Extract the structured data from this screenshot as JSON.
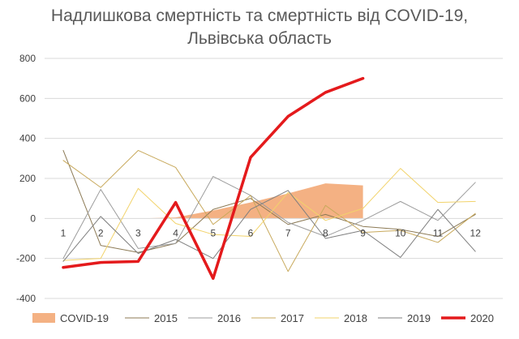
{
  "chart_data": {
    "type": "line",
    "title_line1": "Надлишкова смертність та смертність від COVID-19,",
    "title_line2": "Львівська область",
    "x": [
      1,
      2,
      3,
      4,
      5,
      6,
      7,
      8,
      9,
      10,
      11,
      12
    ],
    "x_tick_labels": [
      "1",
      "2",
      "3",
      "4",
      "5",
      "6",
      "7",
      "8",
      "9",
      "10",
      "11",
      "12"
    ],
    "ylim": [
      -400,
      800
    ],
    "y_ticks": [
      -400,
      -200,
      0,
      200,
      400,
      600,
      800
    ],
    "grid": true,
    "legend_position": "bottom",
    "area": {
      "name": "COVID-19",
      "color": "#f4b183",
      "x": [
        3,
        4,
        5,
        6,
        7,
        8,
        9
      ],
      "values": [
        0,
        5,
        40,
        80,
        125,
        175,
        165
      ]
    },
    "series": [
      {
        "name": "2015",
        "color": "#8c7a55",
        "width": 1,
        "values": [
          340,
          -135,
          -170,
          -125,
          45,
          100,
          -30,
          20,
          -40,
          -55,
          -90,
          20
        ]
      },
      {
        "name": "2016",
        "color": "#9c9c9c",
        "width": 1,
        "values": [
          -200,
          145,
          -150,
          -125,
          210,
          115,
          -20,
          -90,
          -10,
          85,
          -10,
          180
        ]
      },
      {
        "name": "2017",
        "color": "#c8a95c",
        "width": 1,
        "values": [
          290,
          155,
          340,
          255,
          -30,
          115,
          -265,
          65,
          -70,
          -60,
          -120,
          25
        ]
      },
      {
        "name": "2018",
        "color": "#f2d36b",
        "width": 1,
        "values": [
          -210,
          -200,
          150,
          -25,
          -80,
          -90,
          130,
          -10,
          50,
          250,
          80,
          85
        ]
      },
      {
        "name": "2019",
        "color": "#7f7f7f",
        "width": 1,
        "values": [
          -215,
          10,
          -175,
          -105,
          -200,
          45,
          140,
          -100,
          -60,
          -195,
          45,
          -165
        ]
      },
      {
        "name": "2020",
        "color": "#e41a1c",
        "width": 3.5,
        "values": [
          -245,
          -220,
          -215,
          80,
          -300,
          305,
          510,
          630,
          700,
          null,
          null,
          null
        ]
      }
    ]
  }
}
